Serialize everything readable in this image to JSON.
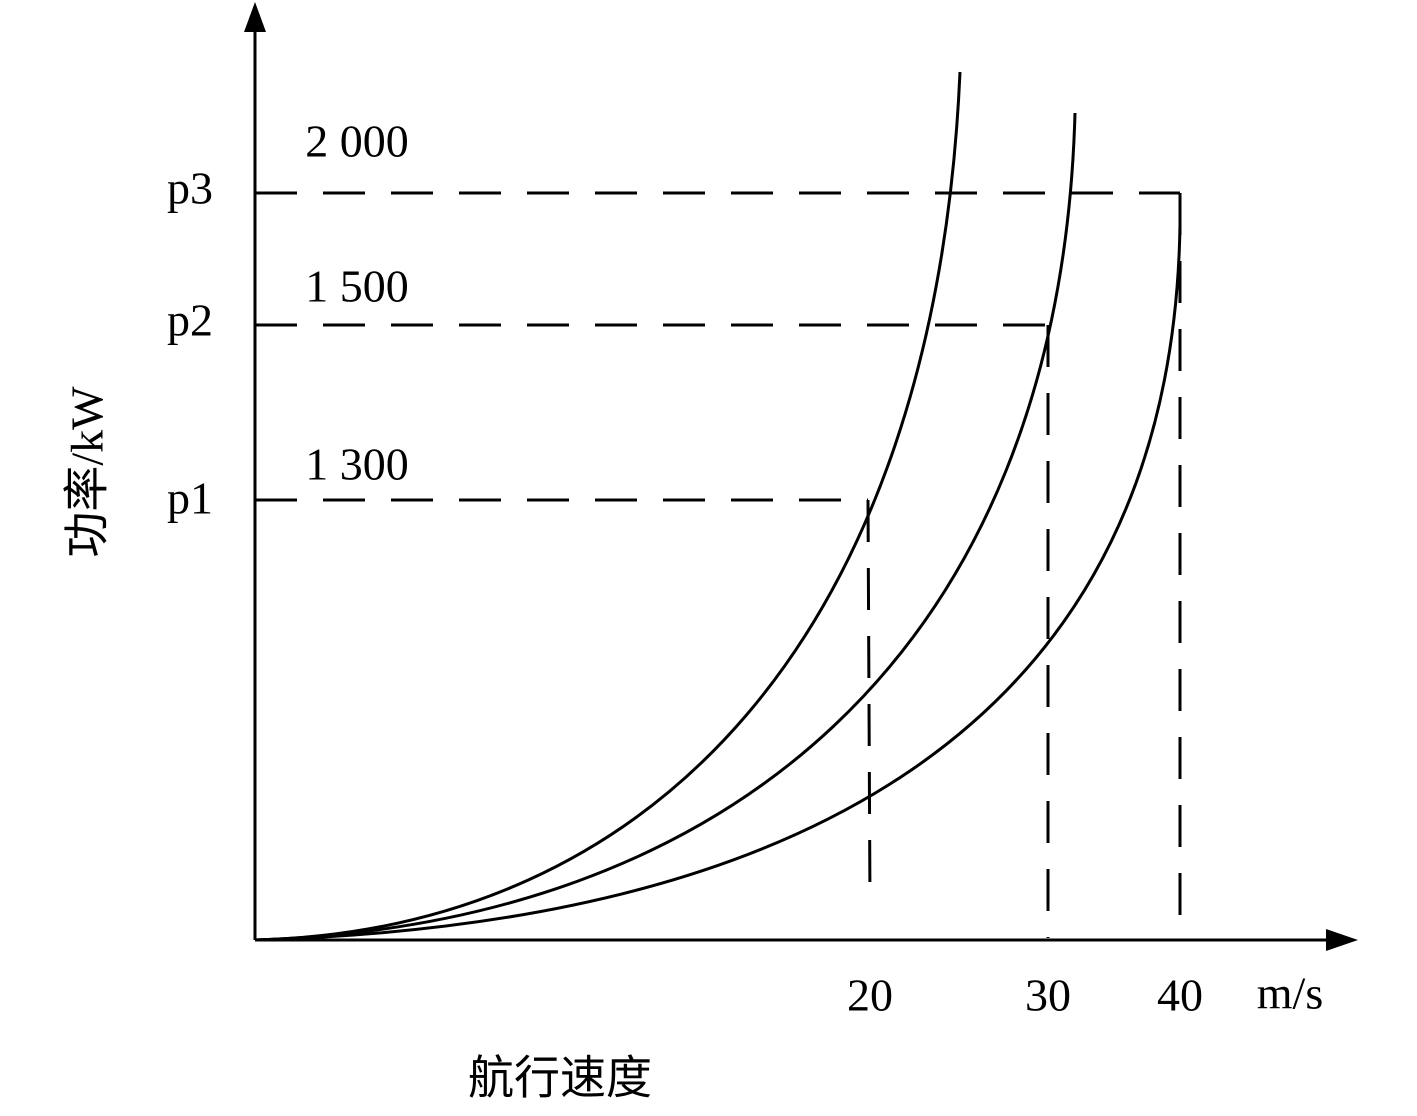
{
  "diagram": {
    "y_axis_label": "功率/kW",
    "x_axis_label": "航行速度",
    "x_unit": "m/s",
    "levels": [
      {
        "name": "p1",
        "power": "1 300"
      },
      {
        "name": "p2",
        "power": "1 500"
      },
      {
        "name": "p3",
        "power": "2 000"
      }
    ],
    "speeds": [
      "20",
      "30",
      "40"
    ]
  }
}
